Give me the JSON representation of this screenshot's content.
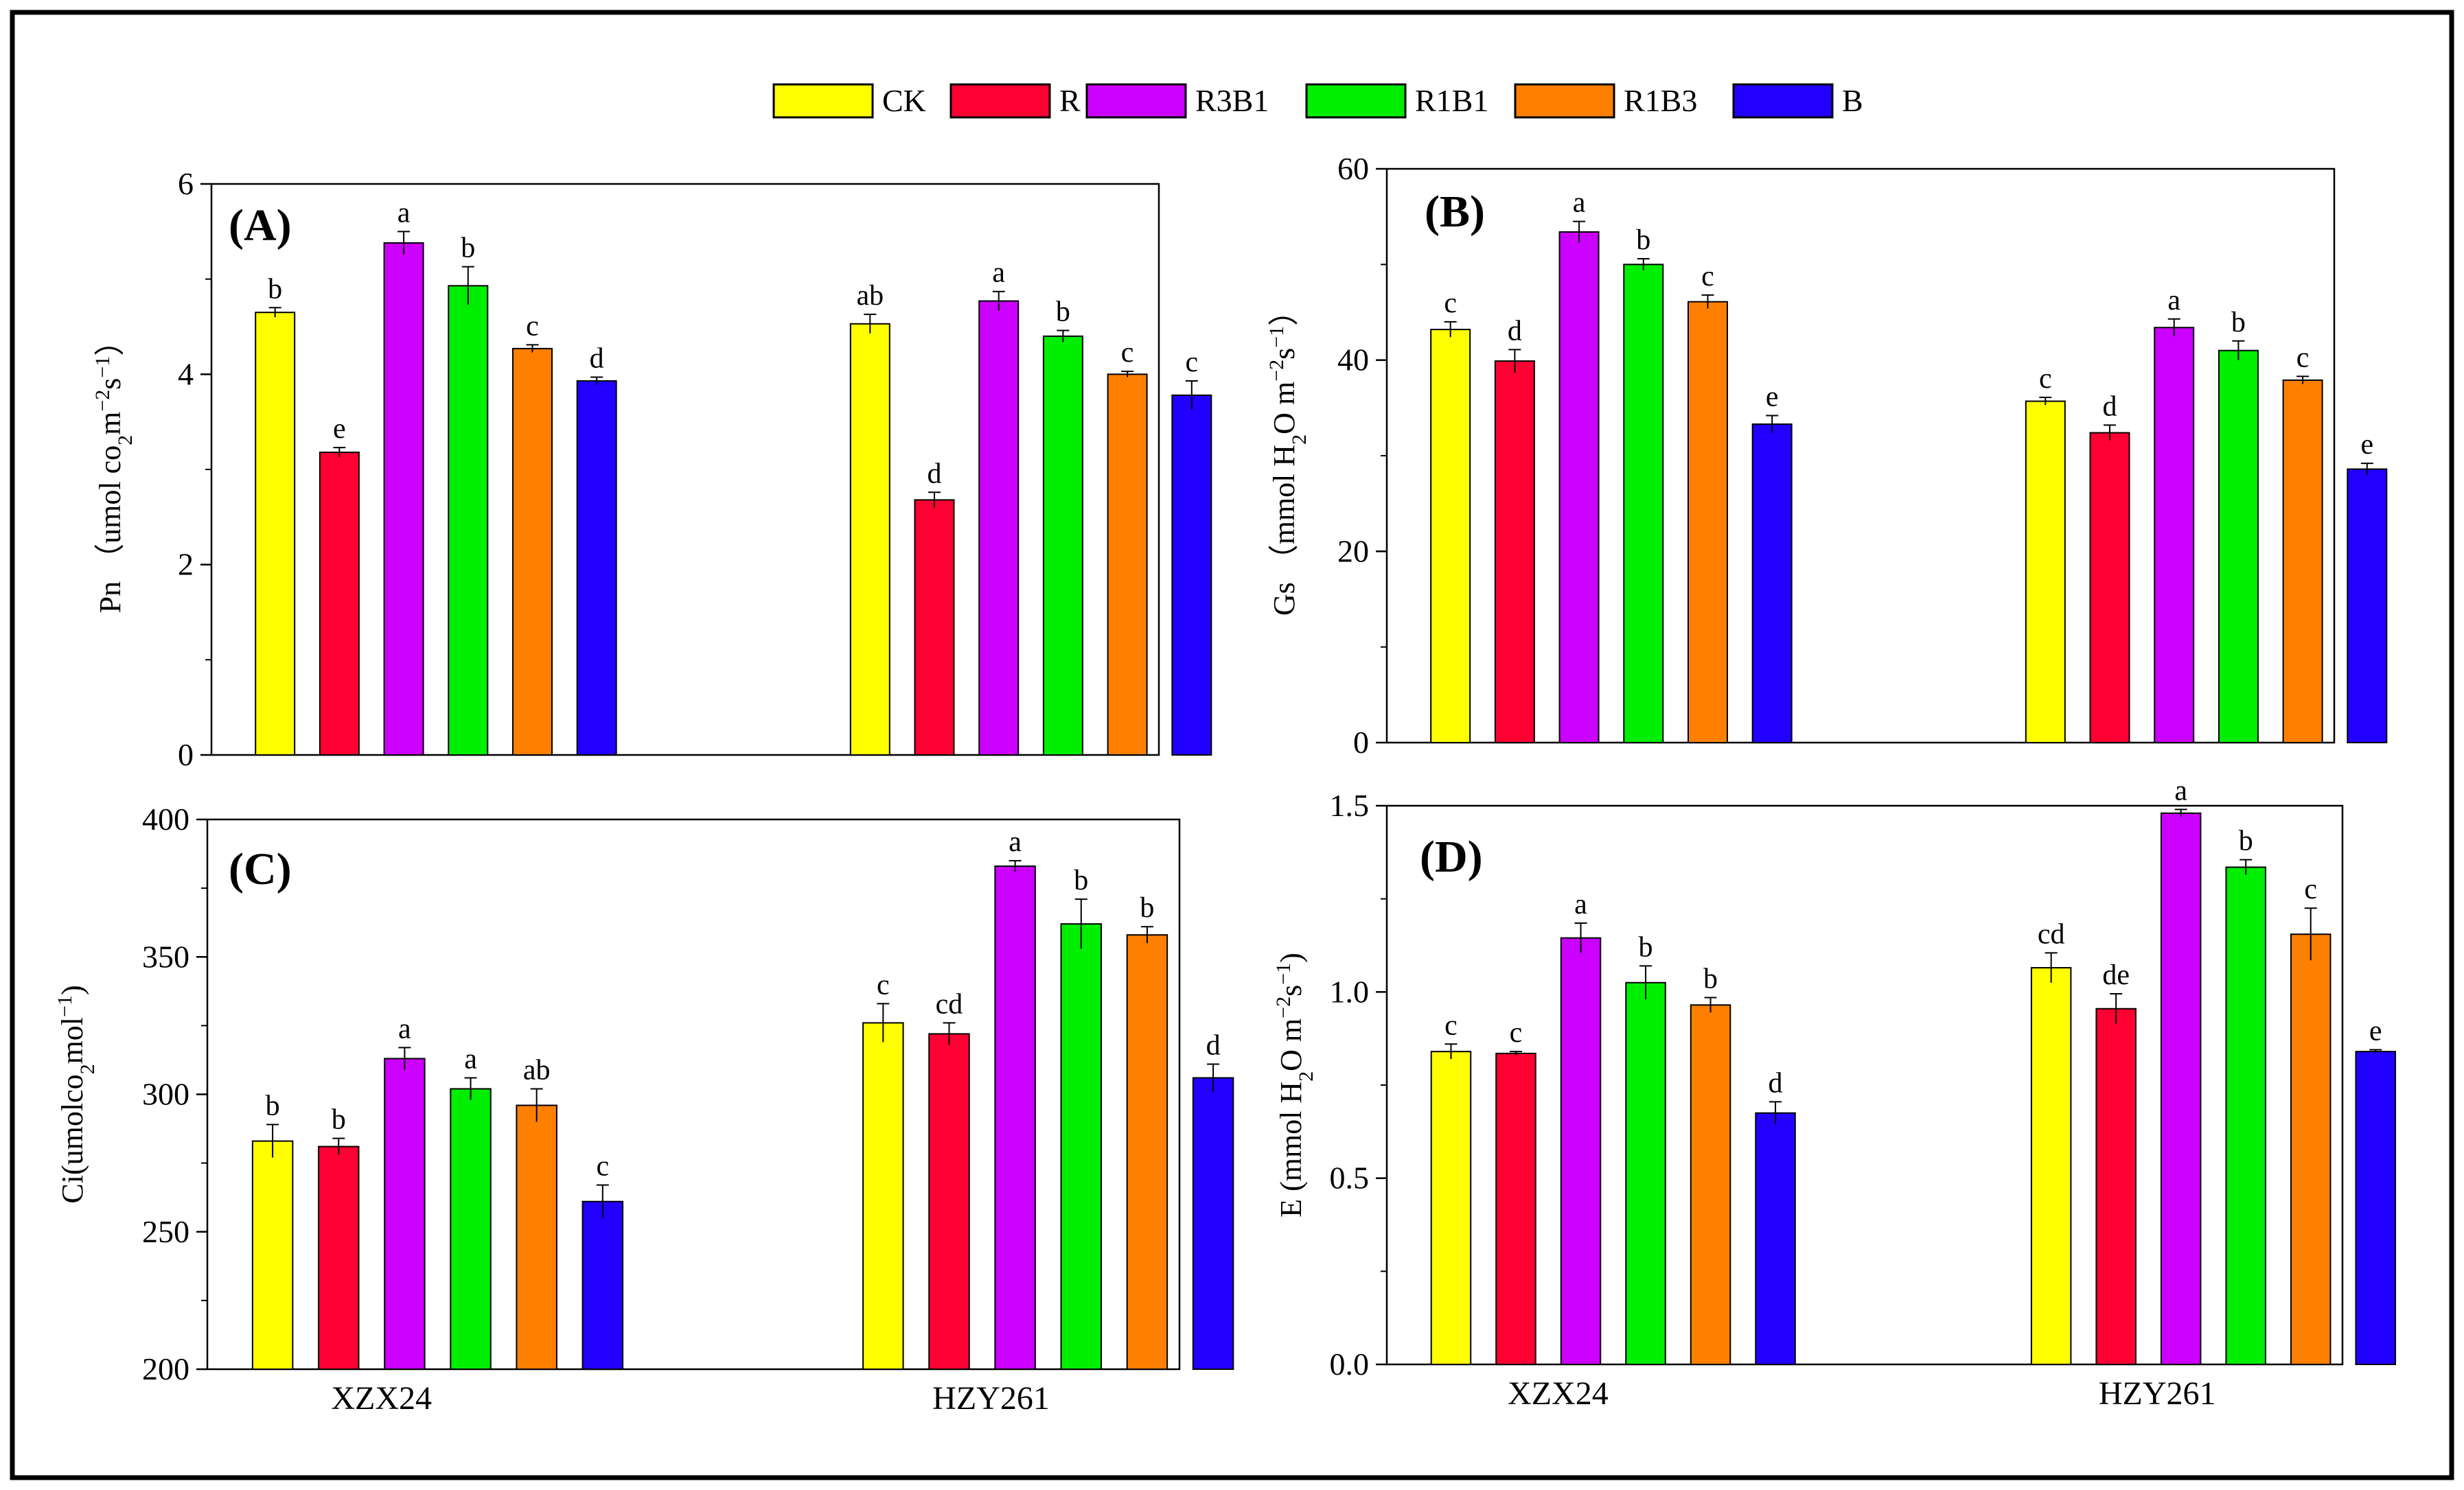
{
  "legend": [
    {
      "name": "CK",
      "color": "#ffff00"
    },
    {
      "name": "R",
      "color": "#ff0033"
    },
    {
      "name": "R3B1",
      "color": "#cc00ff"
    },
    {
      "name": "R1B1",
      "color": "#00ee00"
    },
    {
      "name": "R1B3",
      "color": "#ff8000"
    },
    {
      "name": "B",
      "color": "#2200ff"
    }
  ],
  "chart_data": [
    {
      "type": "bar",
      "panel": "(A)",
      "ylabel_html": "Pn （umol co<tspan baseline-shift=\"sub\" font-size=\"30\">2</tspan>m<tspan baseline-shift=\"super\" font-size=\"30\">−2</tspan>s<tspan baseline-shift=\"super\" font-size=\"30\">−1</tspan>）",
      "ylim": [
        0,
        6
      ],
      "yticks": [
        "0",
        "2",
        "4",
        "6"
      ],
      "categories": [
        "XZX24",
        "HZY261"
      ],
      "show_xlabels": false,
      "series": [
        {
          "name": "CK",
          "values": [
            4.65,
            4.53
          ],
          "errors": [
            0.05,
            0.1
          ],
          "letters": [
            "b",
            "ab"
          ]
        },
        {
          "name": "R",
          "values": [
            3.18,
            2.68
          ],
          "errors": [
            0.05,
            0.08
          ],
          "letters": [
            "e",
            "d"
          ]
        },
        {
          "name": "R3B1",
          "values": [
            5.38,
            4.77
          ],
          "errors": [
            0.12,
            0.1
          ],
          "letters": [
            "a",
            "a"
          ]
        },
        {
          "name": "R1B1",
          "values": [
            4.93,
            4.4
          ],
          "errors": [
            0.2,
            0.06
          ],
          "letters": [
            "b",
            "b"
          ]
        },
        {
          "name": "R1B3",
          "values": [
            4.27,
            4.0
          ],
          "errors": [
            0.04,
            0.03
          ],
          "letters": [
            "c",
            "c"
          ]
        },
        {
          "name": "B",
          "values": [
            3.93,
            3.78
          ],
          "errors": [
            0.04,
            0.15
          ],
          "letters": [
            "d",
            "c"
          ]
        }
      ]
    },
    {
      "type": "bar",
      "panel": "(B)",
      "ylabel_html": "Gs （mmol H<tspan baseline-shift=\"sub\" font-size=\"30\">2</tspan>O m<tspan baseline-shift=\"super\" font-size=\"30\">−2</tspan>s<tspan baseline-shift=\"super\" font-size=\"30\">−1</tspan>）",
      "ylim": [
        0,
        60
      ],
      "yticks": [
        "0",
        "20",
        "40",
        "60"
      ],
      "categories": [
        "XZX24",
        "HZY261"
      ],
      "show_xlabels": false,
      "series": [
        {
          "name": "CK",
          "values": [
            43.2,
            35.7
          ],
          "errors": [
            0.8,
            0.4
          ],
          "letters": [
            "c",
            "c"
          ]
        },
        {
          "name": "R",
          "values": [
            39.9,
            32.4
          ],
          "errors": [
            1.2,
            0.8
          ],
          "letters": [
            "d",
            "d"
          ]
        },
        {
          "name": "R3B1",
          "values": [
            53.4,
            43.4
          ],
          "errors": [
            1.1,
            0.9
          ],
          "letters": [
            "a",
            "a"
          ]
        },
        {
          "name": "R1B1",
          "values": [
            50.0,
            41.0
          ],
          "errors": [
            0.6,
            1.0
          ],
          "letters": [
            "b",
            "b"
          ]
        },
        {
          "name": "R1B3",
          "values": [
            46.1,
            37.9
          ],
          "errors": [
            0.7,
            0.4
          ],
          "letters": [
            "c",
            "c"
          ]
        },
        {
          "name": "B",
          "values": [
            33.3,
            28.6
          ],
          "errors": [
            0.9,
            0.6
          ],
          "letters": [
            "e",
            "e"
          ]
        }
      ]
    },
    {
      "type": "bar",
      "panel": "(C)",
      "ylabel_html": "Ci(umolco<tspan baseline-shift=\"sub\" font-size=\"30\">2</tspan>mol<tspan baseline-shift=\"super\" font-size=\"30\">−1</tspan>)",
      "ylim": [
        200,
        400
      ],
      "yticks": [
        "200",
        "250",
        "300",
        "350",
        "400"
      ],
      "categories": [
        "XZX24",
        "HZY261"
      ],
      "show_xlabels": true,
      "series": [
        {
          "name": "CK",
          "values": [
            283,
            326
          ],
          "errors": [
            6,
            7
          ],
          "letters": [
            "b",
            "c"
          ]
        },
        {
          "name": "R",
          "values": [
            281,
            322
          ],
          "errors": [
            3,
            4
          ],
          "letters": [
            "b",
            "cd"
          ]
        },
        {
          "name": "R3B1",
          "values": [
            313,
            383
          ],
          "errors": [
            4,
            2
          ],
          "letters": [
            "a",
            "a"
          ]
        },
        {
          "name": "R1B1",
          "values": [
            302,
            362
          ],
          "errors": [
            4,
            9
          ],
          "letters": [
            "a",
            "b"
          ]
        },
        {
          "name": "R1B3",
          "values": [
            296,
            358
          ],
          "errors": [
            6,
            3
          ],
          "letters": [
            "ab",
            "b"
          ]
        },
        {
          "name": "B",
          "values": [
            261,
            306
          ],
          "errors": [
            6,
            5
          ],
          "letters": [
            "c",
            "d"
          ]
        }
      ]
    },
    {
      "type": "bar",
      "panel": "(D)",
      "ylabel_html": "E (mmol H<tspan baseline-shift=\"sub\" font-size=\"30\">2</tspan>O m<tspan baseline-shift=\"super\" font-size=\"30\">−2</tspan>s<tspan baseline-shift=\"super\" font-size=\"30\">−1</tspan>)",
      "ylim": [
        0,
        1.5
      ],
      "yticks": [
        "0.0",
        "0.5",
        "1.0",
        "1.5"
      ],
      "categories": [
        "XZX24",
        "HZY261"
      ],
      "show_xlabels": true,
      "series": [
        {
          "name": "CK",
          "values": [
            0.84,
            1.065
          ],
          "errors": [
            0.02,
            0.04
          ],
          "letters": [
            "c",
            "cd"
          ]
        },
        {
          "name": "R",
          "values": [
            0.835,
            0.955
          ],
          "errors": [
            0.005,
            0.04
          ],
          "letters": [
            "c",
            "de"
          ]
        },
        {
          "name": "R3B1",
          "values": [
            1.145,
            1.48
          ],
          "errors": [
            0.04,
            0.01
          ],
          "letters": [
            "a",
            "a"
          ]
        },
        {
          "name": "R1B1",
          "values": [
            1.025,
            1.335
          ],
          "errors": [
            0.045,
            0.02
          ],
          "letters": [
            "b",
            "b"
          ]
        },
        {
          "name": "R1B3",
          "values": [
            0.965,
            1.155
          ],
          "errors": [
            0.02,
            0.07
          ],
          "letters": [
            "b",
            "c"
          ]
        },
        {
          "name": "B",
          "values": [
            0.675,
            0.84
          ],
          "errors": [
            0.03,
            0.005
          ],
          "letters": [
            "d",
            "e"
          ]
        }
      ]
    }
  ]
}
